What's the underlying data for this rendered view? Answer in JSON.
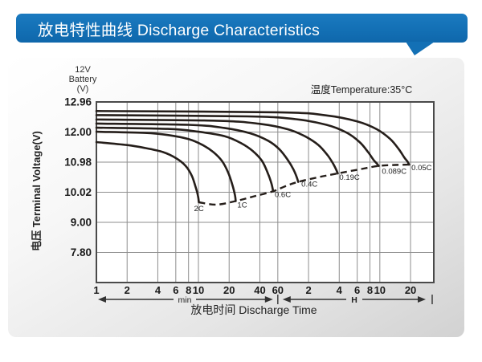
{
  "header": {
    "title": "放电特性曲线 Discharge Characteristics",
    "color": "#1370b5"
  },
  "chart_data": {
    "type": "line",
    "title": "放电特性曲线 Discharge Characteristics",
    "annotation_temperature": "温度Temperature:35°C",
    "y_unit_label": {
      "line1": "12V",
      "line2": "Battery",
      "line3": "(V)"
    },
    "x_axis": {
      "label": "放电时间 Discharge Time",
      "scale": "log",
      "units": [
        {
          "name": "min",
          "ticks": [
            1,
            2,
            4,
            6,
            8,
            10,
            20,
            40,
            60
          ]
        },
        {
          "name": "H",
          "ticks": [
            2,
            4,
            6,
            8,
            10,
            20
          ]
        }
      ]
    },
    "y_axis": {
      "label": "电压 Terminal Voltage(V)",
      "tick_labels": [
        "12.96",
        "12.00",
        "10.98",
        "10.02",
        "9.00",
        "7.80"
      ],
      "gridline_voltages": [
        12.96,
        12.0,
        10.98,
        10.02,
        9.0,
        7.8,
        6.6
      ]
    },
    "grid": true,
    "series": [
      {
        "name": "2C",
        "points": [
          [
            1,
            11.66
          ],
          [
            2,
            11.56
          ],
          [
            3,
            11.46
          ],
          [
            4.5,
            11.32
          ],
          [
            6,
            11.12
          ],
          [
            7.5,
            10.86
          ],
          [
            8.6,
            10.55
          ],
          [
            9.4,
            10.18
          ],
          [
            9.9,
            9.9
          ],
          [
            10.1,
            9.68
          ]
        ]
      },
      {
        "name": "1C",
        "points": [
          [
            1,
            12.01
          ],
          [
            3,
            11.97
          ],
          [
            5,
            11.9
          ],
          [
            8,
            11.76
          ],
          [
            11,
            11.56
          ],
          [
            14,
            11.32
          ],
          [
            17,
            11.02
          ],
          [
            19.5,
            10.66
          ],
          [
            21.5,
            10.26
          ],
          [
            22.8,
            9.92
          ],
          [
            23.2,
            9.72
          ]
        ]
      },
      {
        "name": "0.6C",
        "points": [
          [
            1,
            12.14
          ],
          [
            5,
            12.1
          ],
          [
            10,
            12.01
          ],
          [
            18,
            11.86
          ],
          [
            26,
            11.63
          ],
          [
            34,
            11.36
          ],
          [
            42,
            11.02
          ],
          [
            48,
            10.62
          ],
          [
            52,
            10.3
          ],
          [
            54,
            10.05
          ]
        ]
      },
      {
        "name": "0.4C",
        "points": [
          [
            1,
            12.27
          ],
          [
            8,
            12.23
          ],
          [
            18,
            12.13
          ],
          [
            32,
            11.96
          ],
          [
            48,
            11.71
          ],
          [
            62,
            11.42
          ],
          [
            75,
            11.06
          ],
          [
            85,
            10.76
          ],
          [
            92,
            10.5
          ],
          [
            95,
            10.35
          ]
        ]
      },
      {
        "name": "0.19C",
        "points": [
          [
            1,
            12.4
          ],
          [
            15,
            12.36
          ],
          [
            40,
            12.26
          ],
          [
            75,
            12.09
          ],
          [
            110,
            11.86
          ],
          [
            150,
            11.56
          ],
          [
            185,
            11.21
          ],
          [
            210,
            10.92
          ],
          [
            225,
            10.73
          ],
          [
            232,
            10.62
          ]
        ]
      },
      {
        "name": "0.089C",
        "points": [
          [
            1,
            12.54
          ],
          [
            30,
            12.5
          ],
          [
            90,
            12.41
          ],
          [
            180,
            12.23
          ],
          [
            280,
            11.99
          ],
          [
            380,
            11.66
          ],
          [
            460,
            11.32
          ],
          [
            520,
            11.06
          ],
          [
            560,
            10.94
          ],
          [
            585,
            10.86
          ]
        ]
      },
      {
        "name": "0.05C",
        "points": [
          [
            1,
            12.67
          ],
          [
            60,
            12.63
          ],
          [
            180,
            12.53
          ],
          [
            360,
            12.34
          ],
          [
            560,
            12.09
          ],
          [
            760,
            11.76
          ],
          [
            920,
            11.42
          ],
          [
            1040,
            11.14
          ],
          [
            1120,
            11.0
          ],
          [
            1160,
            10.9
          ]
        ]
      }
    ],
    "cutoff_line": {
      "style": "dashed",
      "points": [
        [
          10.1,
          9.68
        ],
        [
          15,
          9.6
        ],
        [
          23.2,
          9.72
        ],
        [
          35,
          9.88
        ],
        [
          54,
          10.05
        ],
        [
          72,
          10.22
        ],
        [
          95,
          10.35
        ],
        [
          150,
          10.5
        ],
        [
          232,
          10.62
        ],
        [
          380,
          10.75
        ],
        [
          585,
          10.86
        ],
        [
          850,
          10.89
        ],
        [
          1160,
          10.9
        ]
      ]
    },
    "colors": {
      "curve": "#251e1a",
      "grid": "#8e8e8e",
      "plot_border": "#4a4a4a",
      "text": "#222222"
    }
  }
}
